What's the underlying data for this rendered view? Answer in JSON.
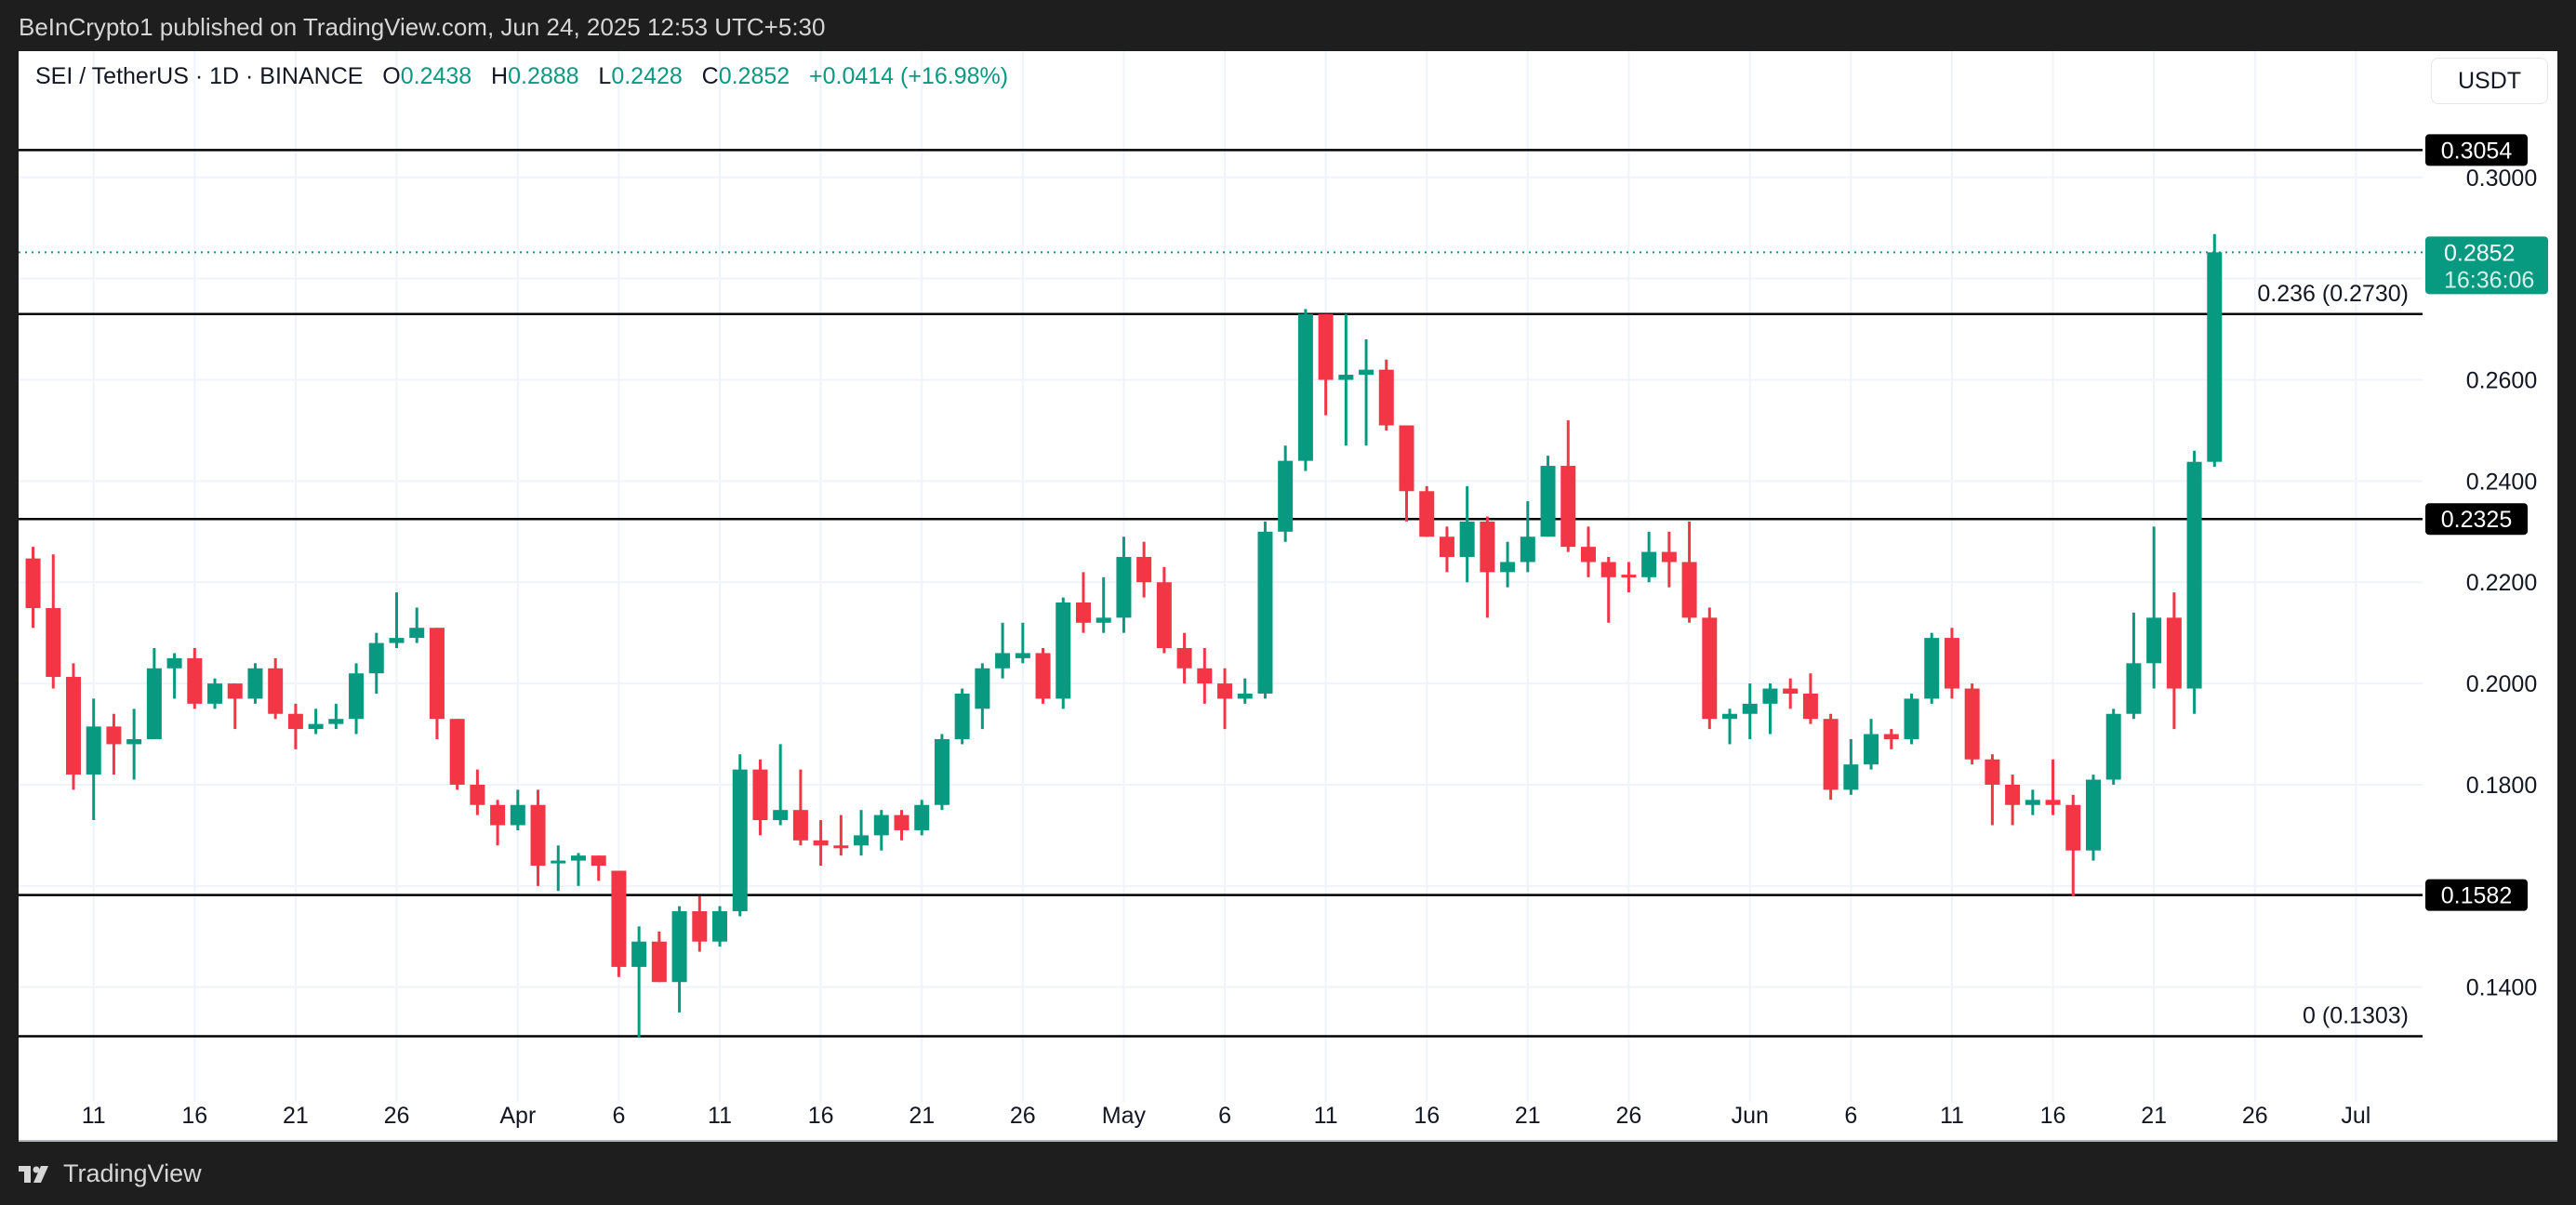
{
  "header": {
    "published": "BeInCrypto1 published on TradingView.com, Jun 24, 2025 12:53 UTC+5:30"
  },
  "legend": {
    "symbol": "SEI / TetherUS · 1D · BINANCE",
    "o_label": "O",
    "o": "0.2438",
    "h_label": "H",
    "h": "0.2888",
    "l_label": "L",
    "l": "0.2428",
    "c_label": "C",
    "c": "0.2852",
    "change": "+0.0414 (+16.98%)"
  },
  "currency_button": "USDT",
  "footer": {
    "brand": "TradingView"
  },
  "colors": {
    "up": "#089981",
    "down": "#f23645",
    "level_line": "#000000",
    "grid": "#f0f3fa"
  },
  "chart_data": {
    "type": "candlestick",
    "title": "SEI / TetherUS · 1D · BINANCE",
    "ylim": [
      0.1255,
      0.3185
    ],
    "y_ticks": [
      "0.3000",
      "0.2600",
      "0.2400",
      "0.2200",
      "0.2000",
      "0.1800",
      "0.1400"
    ],
    "x_ticks": [
      {
        "label": "11",
        "date": "2025-03-11"
      },
      {
        "label": "16",
        "date": "2025-03-16"
      },
      {
        "label": "21",
        "date": "2025-03-21"
      },
      {
        "label": "26",
        "date": "2025-03-26"
      },
      {
        "label": "Apr",
        "date": "2025-04-01"
      },
      {
        "label": "6",
        "date": "2025-04-06"
      },
      {
        "label": "11",
        "date": "2025-04-11"
      },
      {
        "label": "16",
        "date": "2025-04-16"
      },
      {
        "label": "21",
        "date": "2025-04-21"
      },
      {
        "label": "26",
        "date": "2025-04-26"
      },
      {
        "label": "May",
        "date": "2025-05-01"
      },
      {
        "label": "6",
        "date": "2025-05-06"
      },
      {
        "label": "11",
        "date": "2025-05-11"
      },
      {
        "label": "16",
        "date": "2025-05-16"
      },
      {
        "label": "21",
        "date": "2025-05-21"
      },
      {
        "label": "26",
        "date": "2025-05-26"
      },
      {
        "label": "Jun",
        "date": "2025-06-01"
      },
      {
        "label": "6",
        "date": "2025-06-06"
      },
      {
        "label": "11",
        "date": "2025-06-11"
      },
      {
        "label": "16",
        "date": "2025-06-16"
      },
      {
        "label": "21",
        "date": "2025-06-21"
      },
      {
        "label": "26",
        "date": "2025-06-26"
      },
      {
        "label": "Jul",
        "date": "2025-07-01"
      }
    ],
    "levels": [
      {
        "price": 0.3054,
        "axis_label": "0.3054",
        "text": ""
      },
      {
        "price": 0.273,
        "axis_label": "",
        "text": "0.236 (0.2730)"
      },
      {
        "price": 0.2325,
        "axis_label": "0.2325",
        "text": ""
      },
      {
        "price": 0.1582,
        "axis_label": "0.1582",
        "text": ""
      },
      {
        "price": 0.1303,
        "axis_label": "",
        "text": "0 (0.1303)"
      }
    ],
    "last_price": {
      "price": 0.2852,
      "label": "0.2852",
      "countdown": "16:36:06"
    },
    "candles": [
      [
        "2025-03-08",
        0.2247,
        0.227,
        0.211,
        0.2149
      ],
      [
        "2025-03-09",
        0.2149,
        0.2255,
        0.199,
        0.2013
      ],
      [
        "2025-03-10",
        0.2013,
        0.204,
        0.179,
        0.182
      ],
      [
        "2025-03-11",
        0.182,
        0.197,
        0.173,
        0.1915
      ],
      [
        "2025-03-12",
        0.1915,
        0.194,
        0.182,
        0.188
      ],
      [
        "2025-03-13",
        0.188,
        0.195,
        0.181,
        0.189
      ],
      [
        "2025-03-14",
        0.189,
        0.207,
        0.189,
        0.203
      ],
      [
        "2025-03-15",
        0.203,
        0.206,
        0.197,
        0.205
      ],
      [
        "2025-03-16",
        0.205,
        0.207,
        0.195,
        0.196
      ],
      [
        "2025-03-17",
        0.196,
        0.201,
        0.195,
        0.2
      ],
      [
        "2025-03-18",
        0.2,
        0.2,
        0.191,
        0.197
      ],
      [
        "2025-03-19",
        0.197,
        0.204,
        0.196,
        0.203
      ],
      [
        "2025-03-20",
        0.203,
        0.205,
        0.193,
        0.194
      ],
      [
        "2025-03-21",
        0.194,
        0.196,
        0.187,
        0.191
      ],
      [
        "2025-03-22",
        0.191,
        0.195,
        0.19,
        0.192
      ],
      [
        "2025-03-23",
        0.192,
        0.196,
        0.191,
        0.193
      ],
      [
        "2025-03-24",
        0.193,
        0.204,
        0.19,
        0.202
      ],
      [
        "2025-03-25",
        0.202,
        0.21,
        0.198,
        0.208
      ],
      [
        "2025-03-26",
        0.208,
        0.218,
        0.207,
        0.209
      ],
      [
        "2025-03-27",
        0.209,
        0.215,
        0.208,
        0.211
      ],
      [
        "2025-03-28",
        0.211,
        0.211,
        0.189,
        0.193
      ],
      [
        "2025-03-29",
        0.193,
        0.193,
        0.179,
        0.18
      ],
      [
        "2025-03-30",
        0.18,
        0.183,
        0.174,
        0.176
      ],
      [
        "2025-03-31",
        0.176,
        0.177,
        0.168,
        0.172
      ],
      [
        "2025-04-01",
        0.172,
        0.179,
        0.171,
        0.176
      ],
      [
        "2025-04-02",
        0.176,
        0.179,
        0.16,
        0.164
      ],
      [
        "2025-04-03",
        0.1645,
        0.168,
        0.159,
        0.165
      ],
      [
        "2025-04-04",
        0.165,
        0.1665,
        0.16,
        0.166
      ],
      [
        "2025-04-05",
        0.166,
        0.166,
        0.161,
        0.164
      ],
      [
        "2025-04-06",
        0.163,
        0.163,
        0.142,
        0.144
      ],
      [
        "2025-04-07",
        0.144,
        0.152,
        0.13,
        0.149
      ],
      [
        "2025-04-08",
        0.149,
        0.151,
        0.141,
        0.141
      ],
      [
        "2025-04-09",
        0.141,
        0.156,
        0.135,
        0.155
      ],
      [
        "2025-04-10",
        0.155,
        0.158,
        0.147,
        0.149
      ],
      [
        "2025-04-11",
        0.149,
        0.156,
        0.148,
        0.155
      ],
      [
        "2025-04-12",
        0.155,
        0.186,
        0.154,
        0.183
      ],
      [
        "2025-04-13",
        0.183,
        0.185,
        0.17,
        0.173
      ],
      [
        "2025-04-14",
        0.173,
        0.188,
        0.172,
        0.175
      ],
      [
        "2025-04-15",
        0.175,
        0.183,
        0.168,
        0.169
      ],
      [
        "2025-04-16",
        0.169,
        0.173,
        0.164,
        0.168
      ],
      [
        "2025-04-17",
        0.168,
        0.174,
        0.166,
        0.1675
      ],
      [
        "2025-04-18",
        0.168,
        0.175,
        0.166,
        0.17
      ],
      [
        "2025-04-19",
        0.17,
        0.175,
        0.167,
        0.174
      ],
      [
        "2025-04-20",
        0.174,
        0.175,
        0.169,
        0.171
      ],
      [
        "2025-04-21",
        0.171,
        0.177,
        0.17,
        0.176
      ],
      [
        "2025-04-22",
        0.176,
        0.19,
        0.175,
        0.189
      ],
      [
        "2025-04-23",
        0.189,
        0.199,
        0.188,
        0.198
      ],
      [
        "2025-04-24",
        0.195,
        0.204,
        0.191,
        0.203
      ],
      [
        "2025-04-25",
        0.203,
        0.212,
        0.201,
        0.206
      ],
      [
        "2025-04-26",
        0.205,
        0.212,
        0.204,
        0.206
      ],
      [
        "2025-04-27",
        0.206,
        0.207,
        0.196,
        0.197
      ],
      [
        "2025-04-28",
        0.197,
        0.217,
        0.195,
        0.216
      ],
      [
        "2025-04-29",
        0.216,
        0.222,
        0.21,
        0.212
      ],
      [
        "2025-04-30",
        0.212,
        0.221,
        0.21,
        0.213
      ],
      [
        "2025-05-01",
        0.213,
        0.229,
        0.21,
        0.225
      ],
      [
        "2025-05-02",
        0.225,
        0.228,
        0.217,
        0.22
      ],
      [
        "2025-05-03",
        0.22,
        0.223,
        0.206,
        0.207
      ],
      [
        "2025-05-04",
        0.207,
        0.21,
        0.2,
        0.203
      ],
      [
        "2025-05-05",
        0.203,
        0.207,
        0.196,
        0.2
      ],
      [
        "2025-05-06",
        0.2,
        0.203,
        0.191,
        0.197
      ],
      [
        "2025-05-07",
        0.197,
        0.201,
        0.196,
        0.198
      ],
      [
        "2025-05-08",
        0.198,
        0.232,
        0.197,
        0.23
      ],
      [
        "2025-05-09",
        0.23,
        0.247,
        0.228,
        0.244
      ],
      [
        "2025-05-10",
        0.244,
        0.274,
        0.242,
        0.273
      ],
      [
        "2025-05-11",
        0.273,
        0.273,
        0.253,
        0.26
      ],
      [
        "2025-05-12",
        0.26,
        0.273,
        0.247,
        0.261
      ],
      [
        "2025-05-13",
        0.261,
        0.268,
        0.247,
        0.262
      ],
      [
        "2025-05-14",
        0.262,
        0.264,
        0.25,
        0.251
      ],
      [
        "2025-05-15",
        0.251,
        0.251,
        0.232,
        0.238
      ],
      [
        "2025-05-16",
        0.238,
        0.239,
        0.229,
        0.229
      ],
      [
        "2025-05-17",
        0.229,
        0.231,
        0.222,
        0.225
      ],
      [
        "2025-05-18",
        0.225,
        0.239,
        0.22,
        0.232
      ],
      [
        "2025-05-19",
        0.232,
        0.233,
        0.213,
        0.222
      ],
      [
        "2025-05-20",
        0.222,
        0.228,
        0.219,
        0.224
      ],
      [
        "2025-05-21",
        0.224,
        0.236,
        0.222,
        0.229
      ],
      [
        "2025-05-22",
        0.229,
        0.245,
        0.229,
        0.243
      ],
      [
        "2025-05-23",
        0.243,
        0.252,
        0.226,
        0.227
      ],
      [
        "2025-05-24",
        0.227,
        0.231,
        0.221,
        0.224
      ],
      [
        "2025-05-25",
        0.224,
        0.225,
        0.212,
        0.221
      ],
      [
        "2025-05-26",
        0.2215,
        0.224,
        0.218,
        0.221
      ],
      [
        "2025-05-27",
        0.221,
        0.23,
        0.22,
        0.226
      ],
      [
        "2025-05-28",
        0.226,
        0.23,
        0.219,
        0.224
      ],
      [
        "2025-05-29",
        0.224,
        0.232,
        0.212,
        0.213
      ],
      [
        "2025-05-30",
        0.213,
        0.215,
        0.191,
        0.193
      ],
      [
        "2025-05-31",
        0.193,
        0.195,
        0.188,
        0.194
      ],
      [
        "2025-06-01",
        0.194,
        0.2,
        0.189,
        0.196
      ],
      [
        "2025-06-02",
        0.196,
        0.2,
        0.19,
        0.199
      ],
      [
        "2025-06-03",
        0.199,
        0.201,
        0.195,
        0.198
      ],
      [
        "2025-06-04",
        0.198,
        0.202,
        0.192,
        0.193
      ],
      [
        "2025-06-05",
        0.193,
        0.194,
        0.177,
        0.179
      ],
      [
        "2025-06-06",
        0.179,
        0.189,
        0.178,
        0.184
      ],
      [
        "2025-06-07",
        0.184,
        0.193,
        0.183,
        0.19
      ],
      [
        "2025-06-08",
        0.19,
        0.191,
        0.187,
        0.189
      ],
      [
        "2025-06-09",
        0.189,
        0.198,
        0.188,
        0.197
      ],
      [
        "2025-06-10",
        0.197,
        0.21,
        0.196,
        0.209
      ],
      [
        "2025-06-11",
        0.209,
        0.211,
        0.197,
        0.199
      ],
      [
        "2025-06-12",
        0.199,
        0.2,
        0.184,
        0.185
      ],
      [
        "2025-06-13",
        0.185,
        0.186,
        0.172,
        0.18
      ],
      [
        "2025-06-14",
        0.18,
        0.182,
        0.172,
        0.176
      ],
      [
        "2025-06-15",
        0.176,
        0.179,
        0.174,
        0.177
      ],
      [
        "2025-06-16",
        0.177,
        0.185,
        0.174,
        0.176
      ],
      [
        "2025-06-17",
        0.176,
        0.178,
        0.158,
        0.167
      ],
      [
        "2025-06-18",
        0.167,
        0.182,
        0.165,
        0.181
      ],
      [
        "2025-06-19",
        0.181,
        0.195,
        0.18,
        0.194
      ],
      [
        "2025-06-20",
        0.194,
        0.214,
        0.193,
        0.204
      ],
      [
        "2025-06-21",
        0.204,
        0.231,
        0.199,
        0.213
      ],
      [
        "2025-06-22",
        0.213,
        0.218,
        0.191,
        0.199
      ],
      [
        "2025-06-23",
        0.199,
        0.246,
        0.194,
        0.2438
      ],
      [
        "2025-06-24",
        0.2438,
        0.2888,
        0.2428,
        0.2852
      ]
    ]
  }
}
